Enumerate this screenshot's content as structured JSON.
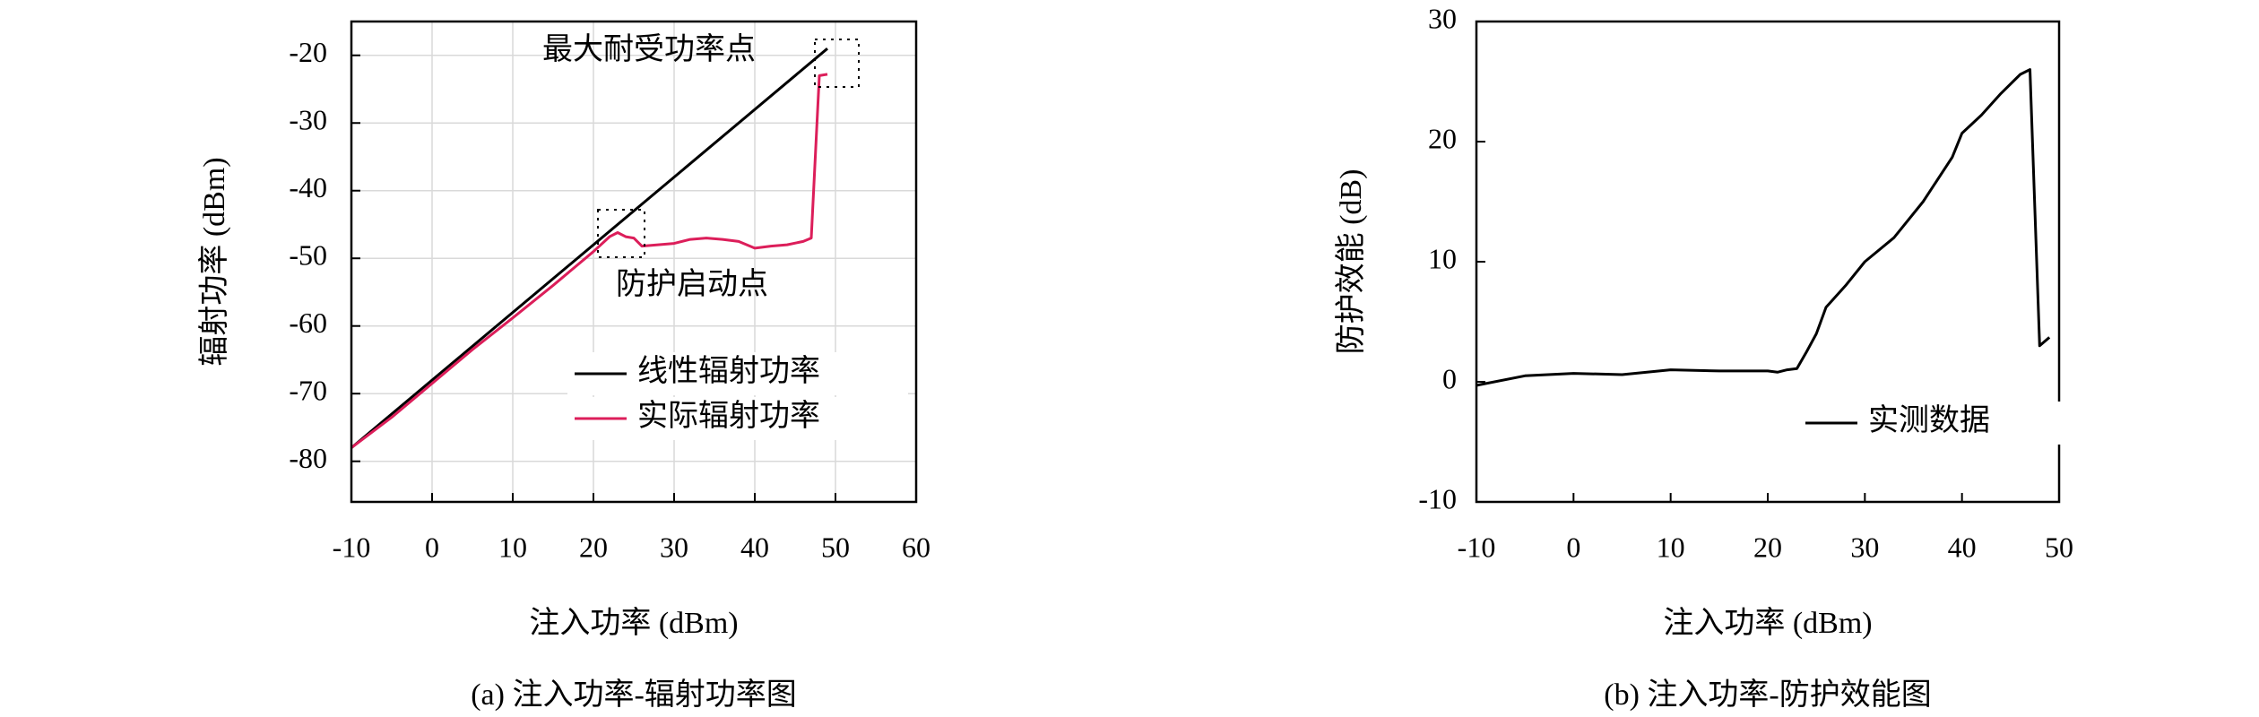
{
  "chart_data": [
    {
      "type": "line",
      "x_label": "注入功率 (dBm)",
      "y_label": "辐射功率 (dBm)",
      "caption": "(a) 注入功率-辐射功率图",
      "annotations": [
        "最大耐受功率点",
        "防护启动点"
      ],
      "xlim": [
        -10,
        60
      ],
      "ylim": [
        -86,
        -15
      ],
      "xticks": [
        -10,
        0,
        10,
        20,
        30,
        40,
        50,
        60
      ],
      "yticks": [
        -80,
        -70,
        -60,
        -50,
        -40,
        -30,
        -20
      ],
      "grid": true,
      "legend": "lower right",
      "series": [
        {
          "name": "线性辐射功率",
          "color": "#000000",
          "x": [
            -10,
            49
          ],
          "values": [
            -78,
            -19
          ]
        },
        {
          "name": "实际辐射功率",
          "color": "#dc1e5a",
          "x": [
            -10,
            -5,
            0,
            5,
            10,
            15,
            20,
            22,
            23,
            24,
            25,
            26,
            28,
            30,
            32,
            34,
            36,
            38,
            40,
            42,
            44,
            46,
            47,
            47.5,
            48,
            49
          ],
          "values": [
            -78,
            -73.5,
            -68.5,
            -63.5,
            -58.8,
            -54,
            -49,
            -46.8,
            -46.2,
            -46.8,
            -47,
            -48.2,
            -48,
            -47.8,
            -47.2,
            -47,
            -47.2,
            -47.5,
            -48.5,
            -48.2,
            -48,
            -47.5,
            -47,
            -35,
            -23,
            -22.8
          ]
        }
      ]
    },
    {
      "type": "line",
      "x_label": "注入功率 (dBm)",
      "y_label": "防护效能 (dB)",
      "caption": "(b) 注入功率-防护效能图",
      "xlim": [
        -10,
        50
      ],
      "ylim": [
        -10,
        30
      ],
      "xticks": [
        -10,
        0,
        10,
        20,
        30,
        40,
        50
      ],
      "yticks": [
        -10,
        0,
        10,
        20,
        30
      ],
      "grid": false,
      "legend": "lower right",
      "series": [
        {
          "name": "实测数据",
          "color": "#000000",
          "x": [
            -10,
            -5,
            0,
            5,
            10,
            15,
            20,
            21,
            22,
            23,
            24,
            25,
            26,
            28,
            30,
            33,
            36,
            39,
            40,
            42,
            44,
            46,
            47,
            48,
            49
          ],
          "values": [
            -0.3,
            0.5,
            0.7,
            0.6,
            1.0,
            0.9,
            0.9,
            0.8,
            1.0,
            1.1,
            2.5,
            4,
            6.2,
            8,
            10,
            12,
            15,
            18.7,
            20.7,
            22.2,
            24,
            25.6,
            26,
            3,
            3.7
          ]
        }
      ]
    }
  ]
}
